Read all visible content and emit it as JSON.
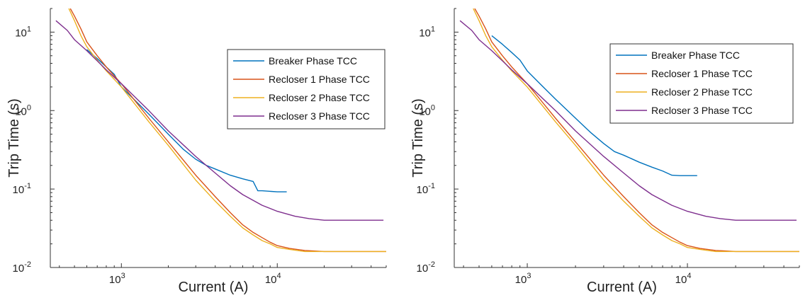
{
  "chart_data": [
    {
      "type": "line",
      "title": "",
      "xlabel": "Current (A)",
      "ylabel": "Trip Time (s)",
      "xscale": "log",
      "yscale": "log",
      "xlim": [
        350,
        50000
      ],
      "ylim": [
        0.01,
        20
      ],
      "xticks": [
        {
          "base": "10",
          "exp": "3"
        },
        {
          "base": "10",
          "exp": "4"
        }
      ],
      "yticks": [
        {
          "base": "10",
          "exp": "1"
        },
        {
          "base": "10",
          "exp": "0"
        },
        {
          "base": "10",
          "exp": "-1"
        },
        {
          "base": "10",
          "exp": "-2"
        }
      ],
      "legend_position": "top-right",
      "series": [
        {
          "name": "Breaker Phase TCC",
          "color": "#0072BD",
          "x": [
            600,
            700,
            800,
            900,
            1000,
            1200,
            1500,
            2000,
            2500,
            3000,
            3500,
            4000,
            5000,
            6000,
            7000,
            7500,
            8000,
            10000,
            11500
          ],
          "y": [
            6.0,
            4.6,
            3.6,
            2.9,
            2.0,
            1.4,
            0.9,
            0.5,
            0.32,
            0.24,
            0.2,
            0.18,
            0.15,
            0.135,
            0.125,
            0.095,
            0.095,
            0.092,
            0.092
          ]
        },
        {
          "name": "Recloser 1 Phase TCC",
          "color": "#D95319",
          "x": [
            470,
            500,
            550,
            600,
            700,
            800,
            1000,
            1500,
            2000,
            3000,
            4000,
            5000,
            6000,
            7000,
            8000,
            9000,
            10000,
            12000,
            15000,
            20000,
            30000,
            50000
          ],
          "y": [
            20,
            16,
            11,
            7.5,
            5.0,
            3.6,
            2.2,
            0.8,
            0.4,
            0.15,
            0.08,
            0.05,
            0.035,
            0.028,
            0.024,
            0.021,
            0.019,
            0.0175,
            0.0165,
            0.016,
            0.016,
            0.016
          ]
        },
        {
          "name": "Recloser 2 Phase TCC",
          "color": "#EDB120",
          "x": [
            460,
            500,
            550,
            600,
            700,
            800,
            1000,
            1500,
            2000,
            3000,
            4000,
            5000,
            6000,
            7000,
            8000,
            9000,
            10000,
            12000,
            15000,
            20000,
            30000,
            50000
          ],
          "y": [
            20,
            14,
            9.0,
            6.5,
            4.4,
            3.2,
            2.0,
            0.72,
            0.36,
            0.13,
            0.07,
            0.045,
            0.032,
            0.026,
            0.022,
            0.02,
            0.018,
            0.017,
            0.016,
            0.016,
            0.016,
            0.016
          ]
        },
        {
          "name": "Recloser 3 Phase TCC",
          "color": "#7E2F8E",
          "x": [
            380,
            450,
            500,
            600,
            700,
            800,
            1000,
            1500,
            2000,
            3000,
            4000,
            5000,
            6000,
            8000,
            10000,
            13000,
            16000,
            20000,
            30000,
            48000
          ],
          "y": [
            14,
            10.5,
            8.0,
            5.8,
            4.3,
            3.3,
            2.2,
            1.0,
            0.55,
            0.26,
            0.16,
            0.11,
            0.085,
            0.062,
            0.052,
            0.045,
            0.042,
            0.04,
            0.04,
            0.04
          ]
        }
      ]
    },
    {
      "type": "line",
      "title": "",
      "xlabel": "Current (A)",
      "ylabel": "Trip Time (s)",
      "xscale": "log",
      "yscale": "log",
      "xlim": [
        350,
        50000
      ],
      "ylim": [
        0.01,
        20
      ],
      "xticks": [
        {
          "base": "10",
          "exp": "3"
        },
        {
          "base": "10",
          "exp": "4"
        }
      ],
      "yticks": [
        {
          "base": "10",
          "exp": "1"
        },
        {
          "base": "10",
          "exp": "0"
        },
        {
          "base": "10",
          "exp": "-1"
        },
        {
          "base": "10",
          "exp": "-2"
        }
      ],
      "legend_position": "top-right",
      "series": [
        {
          "name": "Breaker Phase TCC",
          "color": "#0072BD",
          "x": [
            600,
            700,
            800,
            900,
            1000,
            1200,
            1500,
            2000,
            2500,
            3000,
            3500,
            4000,
            5000,
            6000,
            7000,
            8000,
            9000,
            10000,
            11500
          ],
          "y": [
            9.0,
            7.0,
            5.5,
            4.4,
            3.2,
            2.2,
            1.4,
            0.8,
            0.52,
            0.38,
            0.3,
            0.27,
            0.22,
            0.19,
            0.17,
            0.15,
            0.148,
            0.148,
            0.148
          ]
        },
        {
          "name": "Recloser 1 Phase TCC",
          "color": "#D95319",
          "x": [
            470,
            500,
            550,
            600,
            700,
            800,
            1000,
            1500,
            2000,
            3000,
            4000,
            5000,
            6000,
            7000,
            8000,
            9000,
            10000,
            12000,
            15000,
            20000,
            30000,
            50000
          ],
          "y": [
            20,
            16,
            11,
            7.5,
            5.0,
            3.6,
            2.2,
            0.8,
            0.4,
            0.15,
            0.08,
            0.05,
            0.035,
            0.028,
            0.024,
            0.021,
            0.019,
            0.0175,
            0.0165,
            0.016,
            0.016,
            0.016
          ]
        },
        {
          "name": "Recloser 2 Phase TCC",
          "color": "#EDB120",
          "x": [
            460,
            500,
            550,
            600,
            700,
            800,
            1000,
            1500,
            2000,
            3000,
            4000,
            5000,
            6000,
            7000,
            8000,
            9000,
            10000,
            12000,
            15000,
            20000,
            30000,
            50000
          ],
          "y": [
            20,
            14,
            9.0,
            6.5,
            4.4,
            3.2,
            2.0,
            0.72,
            0.36,
            0.13,
            0.07,
            0.045,
            0.032,
            0.026,
            0.022,
            0.02,
            0.018,
            0.017,
            0.016,
            0.016,
            0.016,
            0.016
          ]
        },
        {
          "name": "Recloser 3 Phase TCC",
          "color": "#7E2F8E",
          "x": [
            380,
            450,
            500,
            600,
            700,
            800,
            1000,
            1500,
            2000,
            3000,
            4000,
            5000,
            6000,
            8000,
            10000,
            13000,
            16000,
            20000,
            30000,
            48000
          ],
          "y": [
            14,
            10.5,
            8.0,
            5.8,
            4.3,
            3.3,
            2.2,
            1.0,
            0.55,
            0.26,
            0.16,
            0.11,
            0.085,
            0.062,
            0.052,
            0.045,
            0.042,
            0.04,
            0.04,
            0.04
          ]
        }
      ]
    }
  ]
}
